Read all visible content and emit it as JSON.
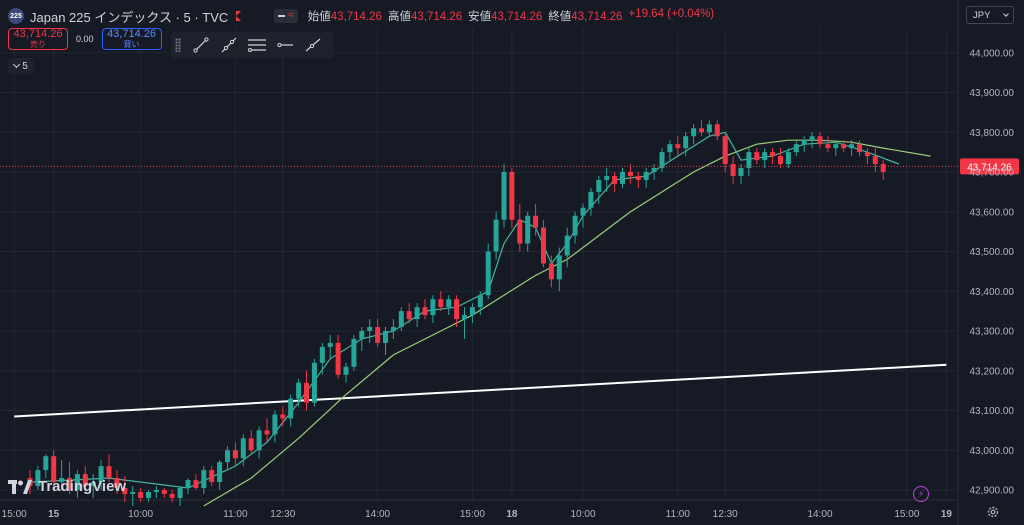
{
  "header": {
    "symbol_badge": "225",
    "title": "Japan 225 インデックス · 5 · TVC",
    "ohlc": [
      {
        "label": "始値",
        "value": "43,714.26"
      },
      {
        "label": "高値",
        "value": "43,714.26"
      },
      {
        "label": "安値",
        "value": "43,714.26"
      },
      {
        "label": "終値",
        "value": "43,714.26"
      },
      {
        "label": "",
        "value": "+19.64 (+0.04%)"
      }
    ]
  },
  "trade": {
    "sell_price": "43,714.26",
    "sell_label": "売り",
    "spread": "0.00",
    "buy_price": "43,714.26",
    "buy_label": "買い"
  },
  "interval": "5",
  "currency": "JPY",
  "logo_text": "TradingView",
  "colors": {
    "background": "#161a25",
    "grid": "#232735",
    "up": "#26a69a",
    "down": "#f23645",
    "ma_fast": "#45b69c",
    "ma_slow": "#9ad07a",
    "trendline": "#ffffff",
    "price_tag": "#f23645"
  },
  "chart_data": {
    "type": "candlestick",
    "y_ticks": [
      42900,
      43000,
      43100,
      43200,
      43300,
      43400,
      43500,
      43600,
      43700,
      43800,
      43900,
      44000
    ],
    "ylim": [
      42860,
      44050
    ],
    "x_ticks": [
      {
        "label": "15:00",
        "bar": -2
      },
      {
        "label": "15",
        "bar": 3
      },
      {
        "label": "10:00",
        "bar": 14
      },
      {
        "label": "11:00",
        "bar": 26
      },
      {
        "label": "12:30",
        "bar": 32
      },
      {
        "label": "14:00",
        "bar": 44
      },
      {
        "label": "15:00",
        "bar": 56
      },
      {
        "label": "18",
        "bar": 61
      },
      {
        "label": "10:00",
        "bar": 70
      },
      {
        "label": "11:00",
        "bar": 82
      },
      {
        "label": "12:30",
        "bar": 88
      },
      {
        "label": "14:00",
        "bar": 100
      },
      {
        "label": "15:00",
        "bar": 111
      },
      {
        "label": "19",
        "bar": 116
      }
    ],
    "candles": [
      [
        42930,
        42950,
        42890,
        42910
      ],
      [
        42910,
        42960,
        42900,
        42950
      ],
      [
        42950,
        42990,
        42930,
        42985
      ],
      [
        42985,
        43000,
        42910,
        42920
      ],
      [
        42920,
        42975,
        42900,
        42930
      ],
      [
        42930,
        42970,
        42890,
        42900
      ],
      [
        42900,
        42950,
        42880,
        42940
      ],
      [
        42940,
        42960,
        42900,
        42910
      ],
      [
        42910,
        42940,
        42880,
        42920
      ],
      [
        42920,
        42975,
        42900,
        42960
      ],
      [
        42960,
        42990,
        42920,
        42930
      ],
      [
        42930,
        42950,
        42890,
        42905
      ],
      [
        42905,
        42935,
        42870,
        42890
      ],
      [
        42890,
        42910,
        42860,
        42895
      ],
      [
        42895,
        42905,
        42870,
        42880
      ],
      [
        42880,
        42900,
        42870,
        42895
      ],
      [
        42895,
        42910,
        42880,
        42900
      ],
      [
        42900,
        42905,
        42880,
        42890
      ],
      [
        42890,
        42900,
        42870,
        42880
      ],
      [
        42880,
        42910,
        42860,
        42905
      ],
      [
        42905,
        42930,
        42890,
        42925
      ],
      [
        42925,
        42940,
        42900,
        42905
      ],
      [
        42905,
        42960,
        42890,
        42950
      ],
      [
        42950,
        42960,
        42910,
        42920
      ],
      [
        42920,
        42975,
        42900,
        42970
      ],
      [
        42970,
        43010,
        42950,
        43000
      ],
      [
        43000,
        43020,
        42960,
        42980
      ],
      [
        42980,
        43040,
        42960,
        43030
      ],
      [
        43030,
        43050,
        42990,
        43000
      ],
      [
        43000,
        43060,
        42980,
        43050
      ],
      [
        43050,
        43080,
        43020,
        43040
      ],
      [
        43040,
        43100,
        43020,
        43090
      ],
      [
        43090,
        43110,
        43060,
        43080
      ],
      [
        43080,
        43140,
        43060,
        43130
      ],
      [
        43130,
        43180,
        43110,
        43170
      ],
      [
        43170,
        43200,
        43100,
        43120
      ],
      [
        43120,
        43230,
        43110,
        43220
      ],
      [
        43220,
        43270,
        43190,
        43260
      ],
      [
        43260,
        43290,
        43230,
        43270
      ],
      [
        43270,
        43290,
        43180,
        43190
      ],
      [
        43190,
        43220,
        43170,
        43210
      ],
      [
        43210,
        43290,
        43200,
        43280
      ],
      [
        43280,
        43310,
        43250,
        43300
      ],
      [
        43300,
        43330,
        43270,
        43310
      ],
      [
        43310,
        43330,
        43260,
        43270
      ],
      [
        43270,
        43310,
        43240,
        43300
      ],
      [
        43300,
        43330,
        43280,
        43310
      ],
      [
        43310,
        43360,
        43300,
        43350
      ],
      [
        43350,
        43370,
        43320,
        43330
      ],
      [
        43330,
        43370,
        43310,
        43360
      ],
      [
        43360,
        43380,
        43330,
        43340
      ],
      [
        43340,
        43390,
        43320,
        43380
      ],
      [
        43380,
        43400,
        43350,
        43360
      ],
      [
        43360,
        43390,
        43340,
        43380
      ],
      [
        43380,
        43390,
        43310,
        43330
      ],
      [
        43330,
        43360,
        43280,
        43340
      ],
      [
        43340,
        43370,
        43320,
        43360
      ],
      [
        43360,
        43400,
        43340,
        43390
      ],
      [
        43390,
        43520,
        43380,
        43500
      ],
      [
        43500,
        43600,
        43480,
        43580
      ],
      [
        43580,
        43720,
        43560,
        43700
      ],
      [
        43700,
        43710,
        43560,
        43580
      ],
      [
        43580,
        43620,
        43500,
        43520
      ],
      [
        43520,
        43600,
        43500,
        43590
      ],
      [
        43590,
        43620,
        43540,
        43560
      ],
      [
        43560,
        43580,
        43460,
        43470
      ],
      [
        43470,
        43490,
        43410,
        43430
      ],
      [
        43430,
        43510,
        43400,
        43490
      ],
      [
        43490,
        43560,
        43460,
        43540
      ],
      [
        43540,
        43600,
        43520,
        43590
      ],
      [
        43590,
        43620,
        43560,
        43610
      ],
      [
        43610,
        43660,
        43590,
        43650
      ],
      [
        43650,
        43690,
        43620,
        43680
      ],
      [
        43680,
        43710,
        43650,
        43690
      ],
      [
        43690,
        43700,
        43650,
        43670
      ],
      [
        43670,
        43710,
        43660,
        43700
      ],
      [
        43700,
        43720,
        43670,
        43690
      ],
      [
        43690,
        43700,
        43660,
        43680
      ],
      [
        43680,
        43710,
        43660,
        43700
      ],
      [
        43700,
        43720,
        43680,
        43710
      ],
      [
        43710,
        43760,
        43700,
        43750
      ],
      [
        43750,
        43780,
        43730,
        43770
      ],
      [
        43770,
        43790,
        43740,
        43760
      ],
      [
        43760,
        43800,
        43740,
        43790
      ],
      [
        43790,
        43820,
        43770,
        43810
      ],
      [
        43810,
        43830,
        43790,
        43800
      ],
      [
        43800,
        43830,
        43790,
        43820
      ],
      [
        43820,
        43830,
        43780,
        43790
      ],
      [
        43790,
        43800,
        43700,
        43720
      ],
      [
        43720,
        43740,
        43670,
        43690
      ],
      [
        43690,
        43720,
        43670,
        43710
      ],
      [
        43710,
        43760,
        43690,
        43750
      ],
      [
        43750,
        43760,
        43720,
        43730
      ],
      [
        43730,
        43760,
        43710,
        43750
      ],
      [
        43750,
        43760,
        43720,
        43740
      ],
      [
        43740,
        43760,
        43710,
        43720
      ],
      [
        43720,
        43760,
        43710,
        43750
      ],
      [
        43750,
        43780,
        43740,
        43770
      ],
      [
        43770,
        43790,
        43750,
        43780
      ],
      [
        43780,
        43800,
        43760,
        43790
      ],
      [
        43790,
        43800,
        43760,
        43770
      ],
      [
        43770,
        43790,
        43750,
        43760
      ],
      [
        43760,
        43780,
        43740,
        43770
      ],
      [
        43770,
        43780,
        43750,
        43760
      ],
      [
        43760,
        43780,
        43740,
        43770
      ],
      [
        43770,
        43780,
        43740,
        43750
      ],
      [
        43750,
        43760,
        43720,
        43740
      ],
      [
        43740,
        43760,
        43700,
        43720
      ],
      [
        43720,
        43730,
        43680,
        43700
      ]
    ],
    "ma_fast": [
      [
        0,
        42920
      ],
      [
        10,
        42930
      ],
      [
        20,
        42905
      ],
      [
        26,
        42960
      ],
      [
        30,
        43020
      ],
      [
        34,
        43120
      ],
      [
        38,
        43230
      ],
      [
        42,
        43280
      ],
      [
        46,
        43300
      ],
      [
        50,
        43350
      ],
      [
        54,
        43360
      ],
      [
        58,
        43400
      ],
      [
        60,
        43520
      ],
      [
        62,
        43580
      ],
      [
        64,
        43560
      ],
      [
        66,
        43470
      ],
      [
        68,
        43520
      ],
      [
        70,
        43590
      ],
      [
        74,
        43680
      ],
      [
        78,
        43690
      ],
      [
        82,
        43740
      ],
      [
        86,
        43790
      ],
      [
        88,
        43800
      ],
      [
        90,
        43730
      ],
      [
        94,
        43740
      ],
      [
        98,
        43770
      ],
      [
        102,
        43775
      ],
      [
        106,
        43750
      ],
      [
        110,
        43720
      ]
    ],
    "ma_slow": [
      [
        22,
        42860
      ],
      [
        28,
        42930
      ],
      [
        34,
        43030
      ],
      [
        40,
        43140
      ],
      [
        46,
        43240
      ],
      [
        52,
        43300
      ],
      [
        56,
        43340
      ],
      [
        60,
        43390
      ],
      [
        64,
        43440
      ],
      [
        68,
        43480
      ],
      [
        72,
        43540
      ],
      [
        76,
        43600
      ],
      [
        80,
        43650
      ],
      [
        84,
        43700
      ],
      [
        88,
        43740
      ],
      [
        92,
        43770
      ],
      [
        96,
        43780
      ],
      [
        100,
        43780
      ],
      [
        104,
        43775
      ],
      [
        108,
        43760
      ],
      [
        114,
        43740
      ]
    ],
    "trendline": [
      [
        -2,
        43085
      ],
      [
        116,
        43215
      ]
    ],
    "last_price": 43714.26,
    "last_price_label": "43,714.26"
  }
}
